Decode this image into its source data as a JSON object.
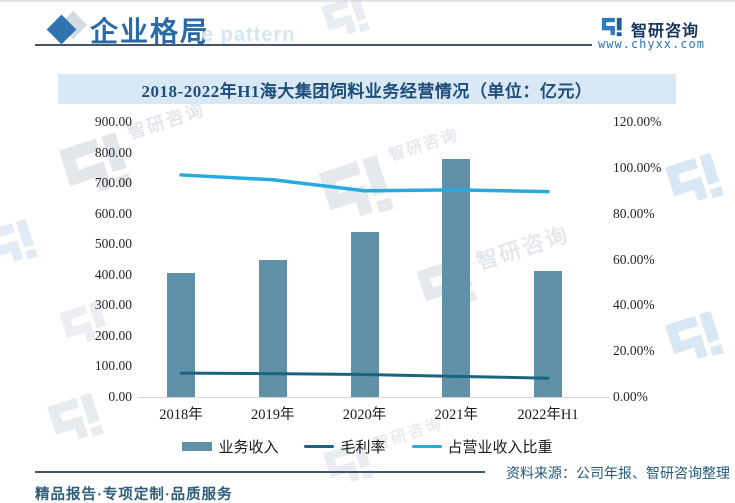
{
  "header": {
    "section_title": "企业格局",
    "section_title_watermark": "e pattern",
    "brand_name": "智研咨询",
    "brand_url": "www.chyxx.com"
  },
  "chart_title": "2018-2022年H1海大集团饲料业务经营情况（单位：亿元）",
  "chart_data": {
    "type": "bar",
    "categories": [
      "2018年",
      "2019年",
      "2020年",
      "2021年",
      "2022年H1"
    ],
    "series": [
      {
        "name": "业务收入",
        "type": "bar",
        "axis": "left",
        "values": [
          405,
          450,
          540,
          778,
          413
        ],
        "color": "#6191a8"
      },
      {
        "name": "毛利率",
        "type": "line",
        "axis": "right",
        "values": [
          10.4,
          10.2,
          9.8,
          9.0,
          8.2
        ],
        "color": "#1b6480"
      },
      {
        "name": "占营业收入比重",
        "type": "line",
        "axis": "right",
        "values": [
          96.9,
          94.8,
          90.0,
          90.4,
          89.6
        ],
        "color": "#29a9dd"
      }
    ],
    "title": "2018-2022年H1海大集团饲料业务经营情况（单位：亿元）",
    "left_axis": {
      "min": 0,
      "max": 900,
      "step": 100,
      "unit": "亿元"
    },
    "right_axis": {
      "min": 0,
      "max": 120,
      "step": 20,
      "unit": "%"
    },
    "legend_position": "bottom",
    "grid": false
  },
  "footer": {
    "tagline": "精品报告·专项定制·品质服务",
    "source": "资料来源：公司年报、智研咨询整理"
  },
  "watermark": {
    "text": "智研咨询"
  }
}
